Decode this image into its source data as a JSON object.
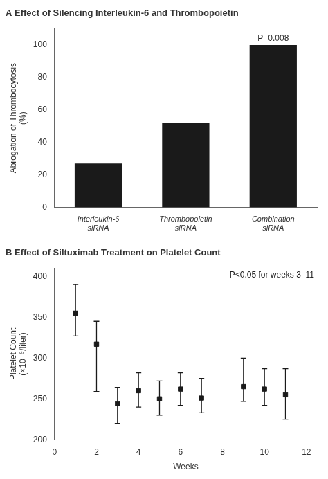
{
  "chart_data": [
    {
      "type": "bar",
      "title": "A Effect of Silencing Interleukin-6 and Thrombopoietin",
      "categories": [
        "Interleukin-6\nsiRNA",
        "Thrombopoietin\nsiRNA",
        "Combination\nsiRNA"
      ],
      "values": [
        27,
        52,
        100
      ],
      "color": "#1a1a1a",
      "ylabel": "Abrogation of Thrombocytosis\n(%)",
      "ylim": [
        0,
        110
      ],
      "yticks": [
        0,
        20,
        40,
        60,
        80,
        100
      ],
      "grid": false,
      "annotation": "P=0.008"
    },
    {
      "type": "scatter",
      "title": "B Effect of Siltuximab Treatment on Platelet Count",
      "x": [
        1,
        2,
        3,
        4,
        5,
        6,
        7,
        9,
        10,
        11
      ],
      "values": [
        355,
        317,
        244,
        260,
        250,
        262,
        251,
        265,
        262,
        255
      ],
      "error_upper": [
        35,
        28,
        20,
        22,
        22,
        20,
        24,
        35,
        25,
        32
      ],
      "error_lower": [
        28,
        58,
        24,
        20,
        20,
        20,
        18,
        18,
        20,
        30
      ],
      "color": "#1a1a1a",
      "marker": "square",
      "xlabel": "Weeks",
      "ylabel": "Platelet Count\n(×10⁻⁹/liter)",
      "xlim": [
        0,
        12.5
      ],
      "xticks": [
        0,
        2,
        4,
        6,
        8,
        10,
        12
      ],
      "ylim": [
        200,
        410
      ],
      "yticks": [
        200,
        250,
        300,
        350,
        400
      ],
      "grid": false,
      "annotation": "P<0.05 for weeks 3–11"
    }
  ]
}
